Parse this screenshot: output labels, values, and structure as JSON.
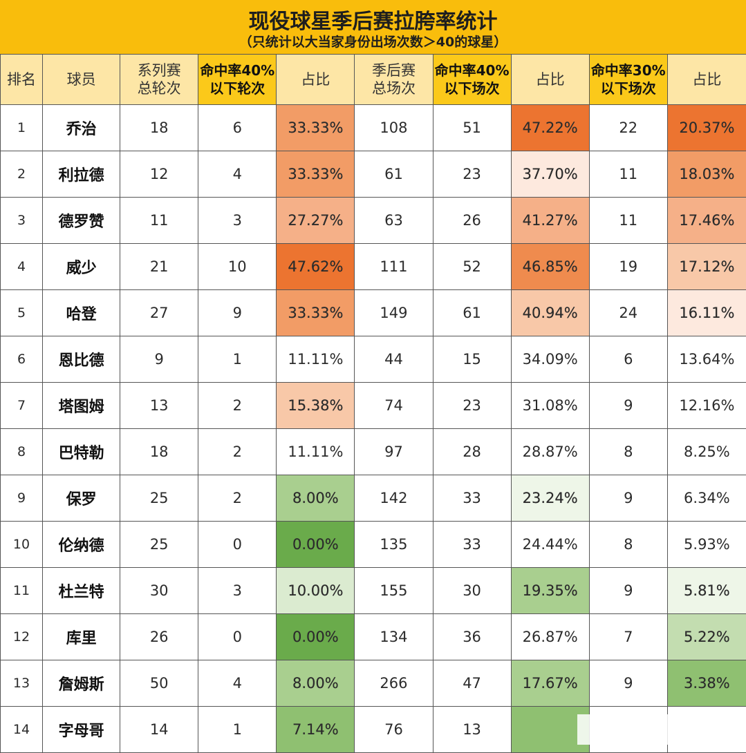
{
  "title": "现役球星季后赛拉胯率统计",
  "subtitle": "（只统计以大当家身份出场次数＞40的球星）",
  "headers": [
    [
      "排名"
    ],
    [
      "球员"
    ],
    [
      "系列赛",
      "总轮次"
    ],
    [
      "命中率40%",
      "以下轮次"
    ],
    [
      "占比"
    ],
    [
      "季后赛",
      "总场次"
    ],
    [
      "命中率40%",
      "以下场次"
    ],
    [
      "占比"
    ],
    [
      "命中率30%",
      "以下场次"
    ],
    [
      "占比"
    ]
  ],
  "rows": [
    {
      "rank": "1",
      "name": "乔治",
      "series": "18",
      "series_low": "6",
      "series_pct": "33.33%",
      "games": "108",
      "games_low40": "51",
      "pct40": "47.22%",
      "games_low30": "22",
      "pct30": "20.37%"
    },
    {
      "rank": "2",
      "name": "利拉德",
      "series": "12",
      "series_low": "4",
      "series_pct": "33.33%",
      "games": "61",
      "games_low40": "23",
      "pct40": "37.70%",
      "games_low30": "11",
      "pct30": "18.03%"
    },
    {
      "rank": "3",
      "name": "德罗赞",
      "series": "11",
      "series_low": "3",
      "series_pct": "27.27%",
      "games": "63",
      "games_low40": "26",
      "pct40": "41.27%",
      "games_low30": "11",
      "pct30": "17.46%"
    },
    {
      "rank": "4",
      "name": "威少",
      "series": "21",
      "series_low": "10",
      "series_pct": "47.62%",
      "games": "111",
      "games_low40": "52",
      "pct40": "46.85%",
      "games_low30": "19",
      "pct30": "17.12%"
    },
    {
      "rank": "5",
      "name": "哈登",
      "series": "27",
      "series_low": "9",
      "series_pct": "33.33%",
      "games": "149",
      "games_low40": "61",
      "pct40": "40.94%",
      "games_low30": "24",
      "pct30": "16.11%"
    },
    {
      "rank": "6",
      "name": "恩比德",
      "series": "9",
      "series_low": "1",
      "series_pct": "11.11%",
      "games": "44",
      "games_low40": "15",
      "pct40": "34.09%",
      "games_low30": "6",
      "pct30": "13.64%"
    },
    {
      "rank": "7",
      "name": "塔图姆",
      "series": "13",
      "series_low": "2",
      "series_pct": "15.38%",
      "games": "74",
      "games_low40": "23",
      "pct40": "31.08%",
      "games_low30": "9",
      "pct30": "12.16%"
    },
    {
      "rank": "8",
      "name": "巴特勒",
      "series": "18",
      "series_low": "2",
      "series_pct": "11.11%",
      "games": "97",
      "games_low40": "28",
      "pct40": "28.87%",
      "games_low30": "8",
      "pct30": "8.25%"
    },
    {
      "rank": "9",
      "name": "保罗",
      "series": "25",
      "series_low": "2",
      "series_pct": "8.00%",
      "games": "142",
      "games_low40": "33",
      "pct40": "23.24%",
      "games_low30": "9",
      "pct30": "6.34%"
    },
    {
      "rank": "10",
      "name": "伦纳德",
      "series": "25",
      "series_low": "0",
      "series_pct": "0.00%",
      "games": "135",
      "games_low40": "33",
      "pct40": "24.44%",
      "games_low30": "8",
      "pct30": "5.93%"
    },
    {
      "rank": "11",
      "name": "杜兰特",
      "series": "30",
      "series_low": "3",
      "series_pct": "10.00%",
      "games": "155",
      "games_low40": "30",
      "pct40": "19.35%",
      "games_low30": "9",
      "pct30": "5.81%"
    },
    {
      "rank": "12",
      "name": "库里",
      "series": "26",
      "series_low": "0",
      "series_pct": "0.00%",
      "games": "134",
      "games_low40": "36",
      "pct40": "26.87%",
      "games_low30": "7",
      "pct30": "5.22%"
    },
    {
      "rank": "13",
      "name": "詹姆斯",
      "series": "50",
      "series_low": "4",
      "series_pct": "8.00%",
      "games": "266",
      "games_low40": "47",
      "pct40": "17.67%",
      "games_low30": "9",
      "pct30": "3.38%"
    },
    {
      "rank": "14",
      "name": "字母哥",
      "series": "14",
      "series_low": "1",
      "series_pct": "7.14%",
      "games": "76",
      "games_low40": "13",
      "pct40": "",
      "games_low30": "",
      "pct30": ""
    }
  ],
  "heat": {
    "series_pct": [
      "o3",
      "o3",
      "o2",
      "o5",
      "o3",
      "",
      "o1",
      "",
      "g2",
      "g4",
      "g0",
      "g4",
      "g2",
      "g3"
    ],
    "pct40": [
      "o5",
      "oz",
      "o2",
      "o4",
      "o1",
      "",
      "",
      "",
      "gz",
      "",
      "g2",
      "",
      "g2",
      "g3"
    ],
    "pct30": [
      "o5",
      "o3",
      "o2",
      "o1",
      "oz",
      "",
      "",
      "",
      "",
      "",
      "gz",
      "g1",
      "g3",
      ""
    ]
  }
}
